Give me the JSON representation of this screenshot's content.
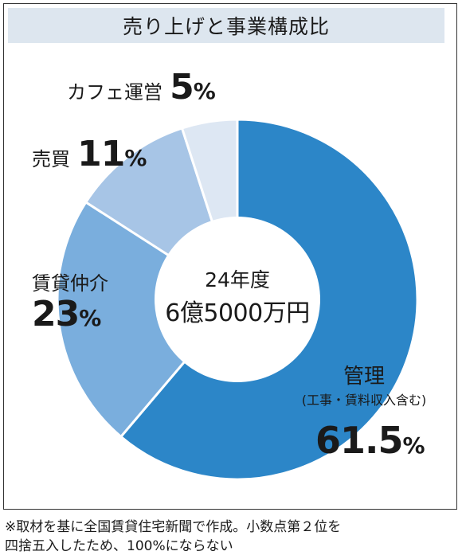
{
  "title": "売り上げと事業構成比",
  "center": {
    "line1": "24年度",
    "line2": "6億5000万円"
  },
  "chart_data": {
    "type": "pie",
    "title": "売り上げと事業構成比",
    "center_label": "24年度 6億5000万円",
    "categories": [
      "管理",
      "賃貸仲介",
      "売買",
      "カフェ運営"
    ],
    "values": [
      61.5,
      23,
      11,
      5
    ],
    "units": "%",
    "sub_labels": {
      "管理": "(工事・賃料収入含む)"
    },
    "colors": [
      "#2c86c8",
      "#7aaedd",
      "#a7c5e6",
      "#dde7f3"
    ],
    "donut": true
  },
  "labels": {
    "kanri": {
      "name": "管理",
      "sub": "(工事・賃料収入含む)",
      "pct": "61.5",
      "sign": "%"
    },
    "chintai": {
      "name": "賃貸仲介",
      "pct": "23",
      "sign": "%"
    },
    "baibai": {
      "name": "売買",
      "pct": "11",
      "sign": "%"
    },
    "cafe": {
      "name": "カフェ運営",
      "pct": "5",
      "sign": "%"
    }
  },
  "note": {
    "line1": "※取材を基に全国賃貸住宅新聞で作成。小数点第２位を",
    "line2": "四捨五入したため、100%にならない"
  }
}
